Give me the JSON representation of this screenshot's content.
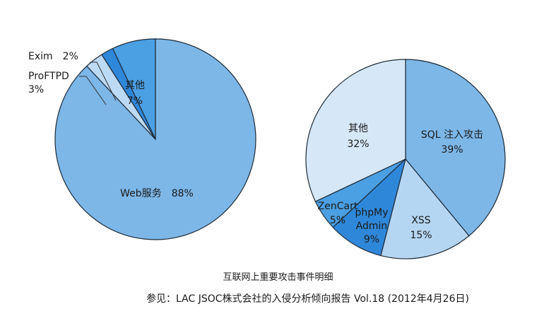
{
  "chart_data": [
    {
      "type": "pie",
      "slices": [
        {
          "label_lines": [
            "Web服务",
            "88%"
          ],
          "label_text": "Web服务　88%",
          "value": 88,
          "color": "#7db7e8"
        },
        {
          "label_lines": [
            "ProFTPD",
            "3%"
          ],
          "label_text": "ProFTPD 3%",
          "value": 3,
          "color": "#bcdaf3"
        },
        {
          "label_lines": [
            "Exim",
            "2%"
          ],
          "label_text": "Exim　2%",
          "value": 2,
          "color": "#2f87d9"
        },
        {
          "label_lines": [
            "其他",
            "7%"
          ],
          "label_text": "其他 7%",
          "value": 7,
          "color": "#4b9fe3"
        }
      ]
    },
    {
      "type": "pie",
      "slices": [
        {
          "label_lines": [
            "SQL 注入攻击",
            "39%"
          ],
          "value": 39,
          "color": "#7db7e8"
        },
        {
          "label_lines": [
            "XSS",
            "15%"
          ],
          "value": 15,
          "color": "#b5d6f2"
        },
        {
          "label_lines": [
            "phpMy",
            "Admin",
            "9%"
          ],
          "value": 9,
          "color": "#2f87d9"
        },
        {
          "label_lines": [
            "ZenCart",
            "5%"
          ],
          "value": 5,
          "color": "#4b9fe3"
        },
        {
          "label_lines": [
            "其他",
            "32%"
          ],
          "value": 32,
          "color": "#d6e8f8"
        }
      ]
    }
  ],
  "caption": {
    "title": "互联网上重要攻击事件明细",
    "source": "参见：LAC JSOC株式会社的入侵分析倾向报告 Vol.18 (2012年4月26日)"
  },
  "colors": {
    "stroke": "#1d2a36",
    "callout": "#333333"
  }
}
